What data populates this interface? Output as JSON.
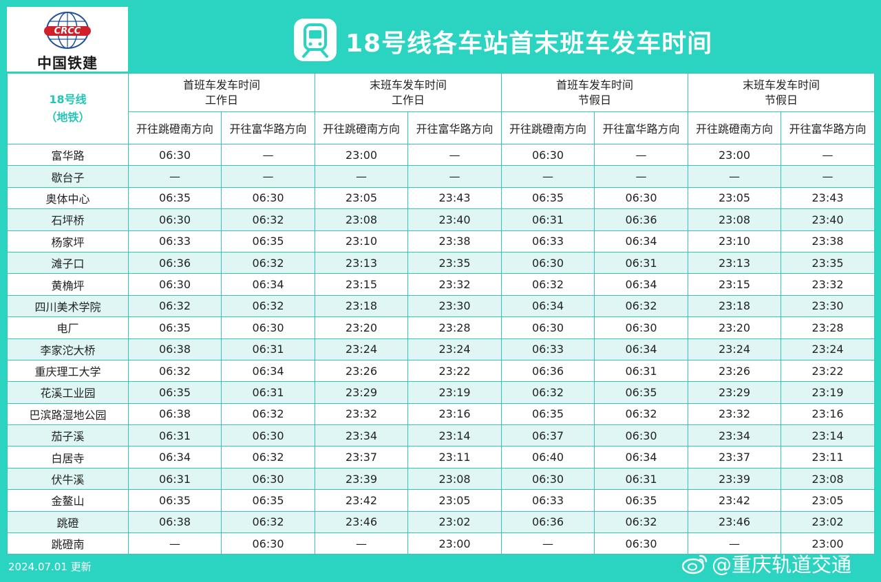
{
  "logo": {
    "badge_text": "CRCC",
    "name": "中国铁建"
  },
  "title": "18号线各车站首末班车发车时间",
  "line_label": {
    "line1": "18号线",
    "line2": "（地铁）"
  },
  "groups": [
    {
      "line1": "首班车发车时间",
      "line2": "工作日"
    },
    {
      "line1": "末班车发车时间",
      "line2": "工作日"
    },
    {
      "line1": "首班车发车时间",
      "line2": "节假日"
    },
    {
      "line1": "末班车发车时间",
      "line2": "节假日"
    }
  ],
  "directions": [
    "开往跳磴南方向",
    "开往富华路方向",
    "开往跳磴南方向",
    "开往富华路方向",
    "开往跳磴南方向",
    "开往富华路方向",
    "开往跳磴南方向",
    "开往富华路方向"
  ],
  "rows": [
    {
      "station": "富华路",
      "times": [
        "06:30",
        "—",
        "23:00",
        "—",
        "06:30",
        "—",
        "23:00",
        "—"
      ]
    },
    {
      "station": "歇台子",
      "times": [
        "—",
        "—",
        "—",
        "—",
        "—",
        "—",
        "—",
        "—"
      ]
    },
    {
      "station": "奥体中心",
      "times": [
        "06:35",
        "06:30",
        "23:05",
        "23:43",
        "06:35",
        "06:30",
        "23:05",
        "23:43"
      ]
    },
    {
      "station": "石坪桥",
      "times": [
        "06:30",
        "06:32",
        "23:08",
        "23:40",
        "06:31",
        "06:36",
        "23:08",
        "23:40"
      ]
    },
    {
      "station": "杨家坪",
      "times": [
        "06:33",
        "06:35",
        "23:10",
        "23:38",
        "06:33",
        "06:34",
        "23:10",
        "23:38"
      ]
    },
    {
      "station": "滩子口",
      "times": [
        "06:36",
        "06:32",
        "23:13",
        "23:35",
        "06:30",
        "06:31",
        "23:13",
        "23:35"
      ]
    },
    {
      "station": "黄桷坪",
      "times": [
        "06:30",
        "06:34",
        "23:15",
        "23:32",
        "06:32",
        "06:34",
        "23:15",
        "23:32"
      ]
    },
    {
      "station": "四川美术学院",
      "times": [
        "06:32",
        "06:32",
        "23:18",
        "23:30",
        "06:34",
        "06:32",
        "23:18",
        "23:30"
      ]
    },
    {
      "station": "电厂",
      "times": [
        "06:35",
        "06:30",
        "23:20",
        "23:28",
        "06:30",
        "06:30",
        "23:20",
        "23:28"
      ]
    },
    {
      "station": "李家沱大桥",
      "times": [
        "06:38",
        "06:31",
        "23:24",
        "23:24",
        "06:33",
        "06:34",
        "23:24",
        "23:24"
      ]
    },
    {
      "station": "重庆理工大学",
      "times": [
        "06:32",
        "06:34",
        "23:26",
        "23:22",
        "06:36",
        "06:31",
        "23:26",
        "23:22"
      ]
    },
    {
      "station": "花溪工业园",
      "times": [
        "06:35",
        "06:31",
        "23:29",
        "23:19",
        "06:32",
        "06:35",
        "23:29",
        "23:19"
      ]
    },
    {
      "station": "巴滨路湿地公园",
      "times": [
        "06:38",
        "06:32",
        "23:32",
        "23:16",
        "06:35",
        "06:32",
        "23:32",
        "23:16"
      ]
    },
    {
      "station": "茄子溪",
      "times": [
        "06:31",
        "06:30",
        "23:34",
        "23:14",
        "06:37",
        "06:30",
        "23:34",
        "23:14"
      ]
    },
    {
      "station": "白居寺",
      "times": [
        "06:34",
        "06:32",
        "23:37",
        "23:11",
        "06:40",
        "06:34",
        "23:37",
        "23:11"
      ]
    },
    {
      "station": "伏牛溪",
      "times": [
        "06:31",
        "06:30",
        "23:39",
        "23:08",
        "06:30",
        "06:31",
        "23:39",
        "23:08"
      ]
    },
    {
      "station": "金鳌山",
      "times": [
        "06:35",
        "06:35",
        "23:42",
        "23:05",
        "06:33",
        "06:35",
        "23:42",
        "23:05"
      ]
    },
    {
      "station": "跳磴",
      "times": [
        "06:38",
        "06:32",
        "23:46",
        "23:02",
        "06:36",
        "06:32",
        "23:46",
        "23:02"
      ]
    },
    {
      "station": "跳磴南",
      "times": [
        "—",
        "06:30",
        "—",
        "23:00",
        "—",
        "06:30",
        "—",
        "23:00"
      ]
    }
  ],
  "footer": {
    "updated": "2024.07.01 更新"
  },
  "watermark": "@重庆轨道交通",
  "colors": {
    "accent": "#2ad4c0",
    "row_alt": "#dff6f4",
    "logo_red": "#d0202a",
    "logo_blue": "#1f4e9b"
  },
  "icons": {
    "title": "metro-train-icon",
    "watermark": "weibo-icon"
  }
}
